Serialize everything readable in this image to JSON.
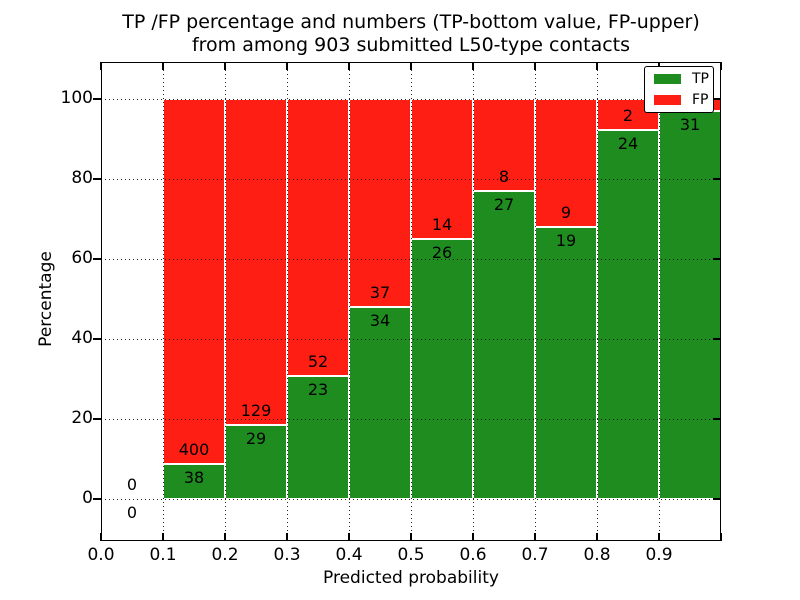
{
  "figure": {
    "title_line1": "TP /FP percentage and numbers (TP-bottom value, FP-upper)",
    "title_line2": "from among 903 submitted L50-type contacts",
    "xlabel": "Predicted probability",
    "ylabel": "Percentage"
  },
  "legend": {
    "position": "upper-right",
    "items": [
      {
        "label": "TP",
        "color": "#1e8c1e"
      },
      {
        "label": "FP",
        "color": "#ff1e14"
      }
    ]
  },
  "chart_data": {
    "type": "bar",
    "stacked": true,
    "normalized_to_percent": true,
    "title": "TP /FP percentage and numbers (TP-bottom value, FP-upper) from among 903 submitted L50-type contacts",
    "xlabel": "Predicted probability",
    "ylabel": "Percentage",
    "xlim": [
      0.0,
      1.0
    ],
    "ylim": [
      -10.5,
      109.5
    ],
    "grid": "dotted black, both axes, drawn over bars",
    "x_tick_labels": [
      "0.0",
      "0.1",
      "0.2",
      "0.3",
      "0.4",
      "0.5",
      "0.6",
      "0.7",
      "0.8",
      "0.9"
    ],
    "y_ticks": [
      0,
      20,
      40,
      60,
      80,
      100
    ],
    "colors": {
      "tp": "#1e8c1e",
      "fp": "#ff1e14"
    },
    "series": [
      {
        "name": "TP",
        "values": [
          0,
          38,
          29,
          23,
          34,
          26,
          27,
          19,
          24,
          31
        ]
      },
      {
        "name": "FP",
        "values": [
          0,
          400,
          129,
          52,
          37,
          14,
          8,
          9,
          2,
          null
        ]
      }
    ],
    "bins": [
      {
        "x0": 0.0,
        "x1": 0.1,
        "tp_label": "0",
        "fp_label": "0",
        "tp_pct": null
      },
      {
        "x0": 0.1,
        "x1": 0.2,
        "tp_label": "38",
        "fp_label": "400",
        "tp_pct": 8.7
      },
      {
        "x0": 0.2,
        "x1": 0.3,
        "tp_label": "29",
        "fp_label": "129",
        "tp_pct": 18.4
      },
      {
        "x0": 0.3,
        "x1": 0.4,
        "tp_label": "23",
        "fp_label": "52",
        "tp_pct": 30.7
      },
      {
        "x0": 0.4,
        "x1": 0.5,
        "tp_label": "34",
        "fp_label": "37",
        "tp_pct": 47.9
      },
      {
        "x0": 0.5,
        "x1": 0.6,
        "tp_label": "26",
        "fp_label": "14",
        "tp_pct": 65.0
      },
      {
        "x0": 0.6,
        "x1": 0.7,
        "tp_label": "27",
        "fp_label": "8",
        "tp_pct": 77.1
      },
      {
        "x0": 0.7,
        "x1": 0.8,
        "tp_label": "19",
        "fp_label": "9",
        "tp_pct": 67.9
      },
      {
        "x0": 0.8,
        "x1": 0.9,
        "tp_label": "24",
        "fp_label": "2",
        "tp_pct": 92.3
      },
      {
        "x0": 0.9,
        "x1": 1.0,
        "tp_label": "31",
        "fp_label": "",
        "tp_pct": 96.9
      }
    ]
  }
}
